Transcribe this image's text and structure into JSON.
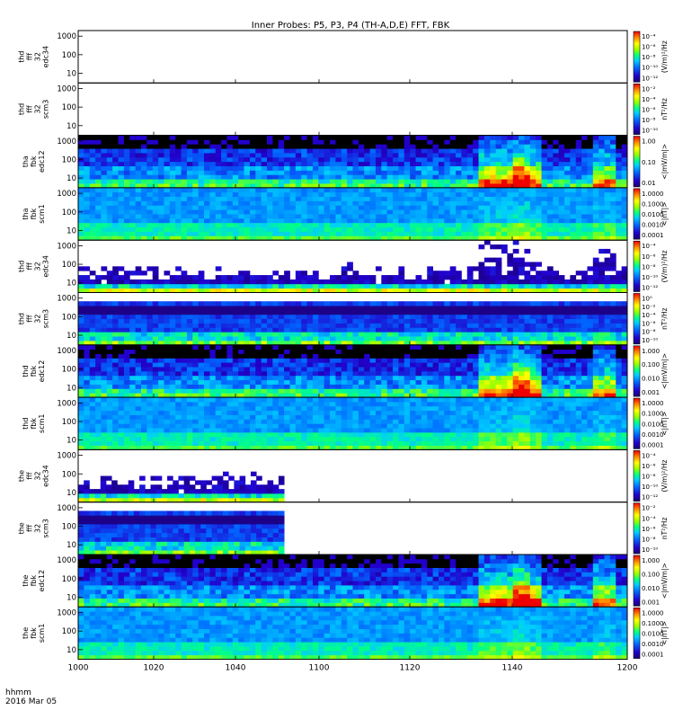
{
  "chart_data": {
    "type": "heatmap",
    "title": "Inner Probes: P5, P3, P4 (TH-A,D,E) FFT, FBK",
    "time_label_1": "hhmm",
    "time_label_2": "2016 Mar 05",
    "x_ticks": [
      "1000",
      "1020",
      "1040",
      "1100",
      "1120",
      "1140",
      "1200"
    ],
    "xlim": [
      0,
      120
    ],
    "y_ticks": [
      "1000",
      "100",
      "10"
    ],
    "ylim_hz": [
      3,
      2000
    ],
    "y_scale": "log",
    "panels": [
      {
        "label": [
          "thd",
          "fff",
          "32",
          "edc34"
        ],
        "scale": "spec_e",
        "kind": "fff_e",
        "coverage": 0,
        "data": "none",
        "cbar_ticks": [
          "10⁻⁴",
          "10⁻⁶",
          "10⁻⁸",
          "10⁻¹⁰",
          "10⁻¹²"
        ],
        "units": "(V/m)²/Hz"
      },
      {
        "label": [
          "thd",
          "fff",
          "32",
          "scm3"
        ],
        "scale": "spec_b",
        "kind": "fff_b",
        "coverage": 0,
        "data": "none",
        "cbar_ticks": [
          "10⁻²",
          "10⁻⁴",
          "10⁻⁶",
          "10⁻⁸",
          "10⁻¹⁰"
        ],
        "units": "nT²/Hz"
      },
      {
        "label": [
          "tha",
          "fbk",
          "edc12"
        ],
        "scale": "amp_e",
        "kind": "fbk_e",
        "coverage": 1,
        "data": "present",
        "cbar_ticks": [
          "1.00",
          "0.10",
          "0.01"
        ],
        "units": "<|mV/m|>"
      },
      {
        "label": [
          "tha",
          "fbk",
          "scm1"
        ],
        "scale": "amp_b",
        "kind": "fbk_b",
        "coverage": 1,
        "data": "present",
        "cbar_ticks": [
          "1.0000",
          "0.1000",
          "0.0100",
          "0.0010",
          "0.0001"
        ],
        "units": "<|nT|>"
      },
      {
        "label": [
          "thd",
          "fff",
          "32",
          "edc34"
        ],
        "scale": "spec_e",
        "kind": "fff_e",
        "coverage": 1,
        "data": "present",
        "cbar_ticks": [
          "10⁻⁴",
          "10⁻⁶",
          "10⁻⁸",
          "10⁻¹⁰",
          "10⁻¹²"
        ],
        "units": "(V/m)²/Hz"
      },
      {
        "label": [
          "thd",
          "fff",
          "32",
          "scm3"
        ],
        "scale": "spec_b",
        "kind": "fff_b",
        "coverage": 1,
        "data": "present",
        "cbar_ticks": [
          "10⁰",
          "10⁻²",
          "10⁻⁴",
          "10⁻⁶",
          "10⁻⁸",
          "10⁻¹⁰"
        ],
        "units": "nT²/Hz"
      },
      {
        "label": [
          "thd",
          "fbk",
          "edc12"
        ],
        "scale": "amp_e",
        "kind": "fbk_e",
        "coverage": 1,
        "data": "present",
        "cbar_ticks": [
          "1.000",
          "0.100",
          "0.010",
          "0.001"
        ],
        "units": "<|mV/m|>"
      },
      {
        "label": [
          "thd",
          "fbk",
          "scm1"
        ],
        "scale": "amp_b",
        "kind": "fbk_b",
        "coverage": 1,
        "data": "present",
        "cbar_ticks": [
          "1.0000",
          "0.1000",
          "0.0100",
          "0.0010",
          "0.0001"
        ],
        "units": "<|nT|>"
      },
      {
        "label": [
          "the",
          "fff",
          "32",
          "edc34"
        ],
        "scale": "spec_e",
        "kind": "fff_e",
        "coverage": 0.375,
        "data": "partial",
        "cbar_ticks": [
          "10⁻⁴",
          "10⁻⁶",
          "10⁻⁸",
          "10⁻¹⁰",
          "10⁻¹²"
        ],
        "units": "(V/m)²/Hz"
      },
      {
        "label": [
          "the",
          "fff",
          "32",
          "scm3"
        ],
        "scale": "spec_b",
        "kind": "fff_b",
        "coverage": 0.375,
        "data": "partial",
        "cbar_ticks": [
          "10⁻²",
          "10⁻⁴",
          "10⁻⁶",
          "10⁻⁸",
          "10⁻¹⁰"
        ],
        "units": "nT²/Hz"
      },
      {
        "label": [
          "the",
          "fbk",
          "edc12"
        ],
        "scale": "amp_e",
        "kind": "fbk_e",
        "coverage": 1,
        "data": "present",
        "cbar_ticks": [
          "1.000",
          "0.100",
          "0.010",
          "0.001"
        ],
        "units": "<|mV/m|>"
      },
      {
        "label": [
          "the",
          "fbk",
          "scm1"
        ],
        "scale": "amp_b",
        "kind": "fbk_b",
        "coverage": 1,
        "data": "present",
        "cbar_ticks": [
          "1.0000",
          "0.1000",
          "0.0100",
          "0.0010",
          "0.0001"
        ],
        "units": "<|nT|>"
      }
    ]
  }
}
